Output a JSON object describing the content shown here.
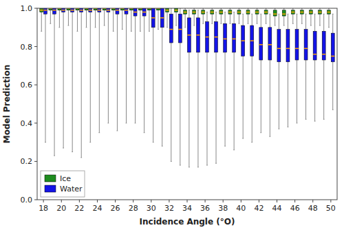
{
  "chart_data": {
    "type": "box",
    "xlabel": "Incidence Angle (°O)",
    "ylabel": "Model Prediction",
    "x": [
      18,
      19,
      20,
      21,
      22,
      23,
      24,
      25,
      26,
      27,
      28,
      29,
      30,
      31,
      32,
      33,
      34,
      35,
      36,
      37,
      38,
      39,
      40,
      41,
      42,
      43,
      44,
      45,
      46,
      47,
      48,
      49,
      50
    ],
    "series": [
      {
        "name": "Ice",
        "color": "#1e8c1e",
        "p5": [
          0.88,
          0.92,
          0.9,
          0.91,
          0.88,
          0.9,
          0.9,
          0.91,
          0.88,
          0.89,
          0.88,
          0.88,
          0.88,
          0.89,
          0.9,
          0.91,
          0.9,
          0.91,
          0.92,
          0.92,
          0.92,
          0.92,
          0.92,
          0.92,
          0.92,
          0.92,
          0.91,
          0.91,
          0.92,
          0.92,
          0.91,
          0.91,
          0.9
        ],
        "q1": [
          0.98,
          0.99,
          0.99,
          0.99,
          0.99,
          0.99,
          0.99,
          0.99,
          0.99,
          0.99,
          0.99,
          0.99,
          0.99,
          0.99,
          0.98,
          0.98,
          0.97,
          0.97,
          0.97,
          0.97,
          0.97,
          0.97,
          0.97,
          0.97,
          0.97,
          0.97,
          0.96,
          0.96,
          0.97,
          0.97,
          0.97,
          0.97,
          0.97
        ],
        "med": [
          0.99,
          1.0,
          1.0,
          1.0,
          1.0,
          1.0,
          1.0,
          1.0,
          1.0,
          1.0,
          1.0,
          1.0,
          1.0,
          1.0,
          0.99,
          0.99,
          0.98,
          0.98,
          0.98,
          0.98,
          0.98,
          0.98,
          0.98,
          0.98,
          0.98,
          0.98,
          0.97,
          0.97,
          0.98,
          0.98,
          0.98,
          0.98,
          0.98
        ],
        "q3": [
          1.0,
          1.0,
          1.0,
          1.0,
          1.0,
          1.0,
          1.0,
          1.0,
          1.0,
          1.0,
          1.0,
          1.0,
          1.0,
          1.0,
          1.0,
          1.0,
          0.99,
          0.99,
          0.99,
          0.99,
          0.99,
          0.99,
          0.99,
          0.99,
          0.99,
          0.99,
          0.99,
          0.99,
          0.99,
          0.99,
          0.99,
          0.99,
          0.99
        ],
        "p95": [
          1.0,
          1.0,
          1.0,
          1.0,
          1.0,
          1.0,
          1.0,
          1.0,
          1.0,
          1.0,
          1.0,
          1.0,
          1.0,
          1.0,
          1.0,
          1.0,
          1.0,
          1.0,
          1.0,
          1.0,
          1.0,
          1.0,
          1.0,
          1.0,
          1.0,
          1.0,
          1.0,
          1.0,
          1.0,
          1.0,
          1.0,
          1.0,
          1.0
        ]
      },
      {
        "name": "Water",
        "color": "#1414e6",
        "p5": [
          0.3,
          0.23,
          0.27,
          0.25,
          0.22,
          0.3,
          0.35,
          0.4,
          0.36,
          0.4,
          0.4,
          0.35,
          0.3,
          0.28,
          0.2,
          0.18,
          0.17,
          0.17,
          0.18,
          0.19,
          0.28,
          0.26,
          0.32,
          0.3,
          0.35,
          0.33,
          0.37,
          0.38,
          0.4,
          0.42,
          0.41,
          0.42,
          0.47
        ],
        "q1": [
          0.97,
          0.97,
          0.98,
          0.98,
          0.98,
          0.98,
          0.98,
          0.98,
          0.97,
          0.97,
          0.96,
          0.96,
          0.9,
          0.9,
          0.82,
          0.82,
          0.77,
          0.77,
          0.77,
          0.77,
          0.77,
          0.77,
          0.75,
          0.75,
          0.73,
          0.73,
          0.72,
          0.72,
          0.73,
          0.73,
          0.73,
          0.73,
          0.72
        ],
        "med": [
          0.99,
          0.99,
          0.99,
          0.99,
          0.99,
          0.99,
          0.99,
          0.99,
          0.99,
          0.99,
          0.98,
          0.98,
          0.95,
          0.95,
          0.89,
          0.89,
          0.86,
          0.86,
          0.85,
          0.85,
          0.84,
          0.84,
          0.83,
          0.83,
          0.81,
          0.81,
          0.79,
          0.79,
          0.79,
          0.79,
          0.76,
          0.76,
          0.75
        ],
        "q3": [
          1.0,
          1.0,
          1.0,
          1.0,
          1.0,
          1.0,
          1.0,
          1.0,
          1.0,
          1.0,
          1.0,
          1.0,
          1.0,
          1.0,
          0.97,
          0.97,
          0.95,
          0.95,
          0.93,
          0.93,
          0.92,
          0.92,
          0.91,
          0.91,
          0.9,
          0.9,
          0.89,
          0.89,
          0.89,
          0.89,
          0.88,
          0.88,
          0.87
        ],
        "p95": [
          1.0,
          1.0,
          1.0,
          1.0,
          1.0,
          1.0,
          1.0,
          1.0,
          1.0,
          1.0,
          1.0,
          1.0,
          1.0,
          1.0,
          1.0,
          1.0,
          0.99,
          0.99,
          0.98,
          0.98,
          0.98,
          0.98,
          0.97,
          0.97,
          0.97,
          0.97,
          0.97,
          0.97,
          0.97,
          0.97,
          0.97,
          0.97,
          0.97
        ]
      }
    ],
    "xlim": [
      17.3,
      50.7
    ],
    "xticks": [
      18,
      20,
      22,
      24,
      26,
      28,
      30,
      32,
      34,
      36,
      38,
      40,
      42,
      44,
      46,
      48,
      50
    ],
    "ylim": [
      0.0,
      1.0
    ],
    "yticks": [
      {
        "value": 0.0,
        "label": "0.0"
      },
      0.2,
      0.4,
      0.6,
      0.8,
      {
        "value": 1.0,
        "label": "1.0"
      }
    ],
    "grid": false,
    "legend": "lower left"
  }
}
